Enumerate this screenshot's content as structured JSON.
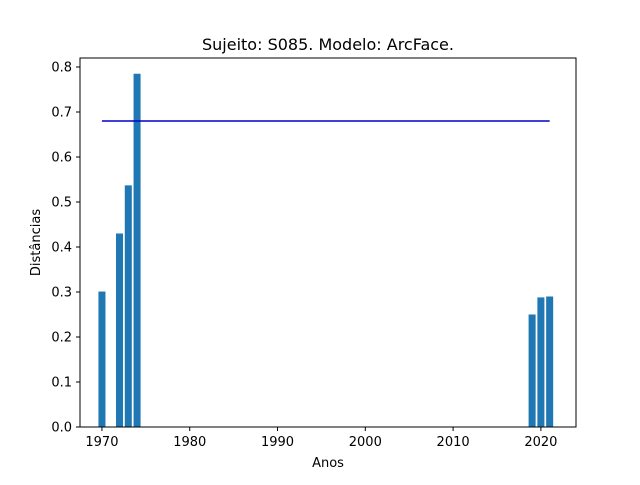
{
  "chart_data": {
    "type": "bar",
    "title": "Sujeito: S085. Modelo: ArcFace.",
    "xlabel": "Anos",
    "ylabel": "Distâncias",
    "xlim": [
      1967.5,
      2024.0
    ],
    "ylim": [
      0,
      0.82
    ],
    "xticks": [
      1970,
      1980,
      1990,
      2000,
      2010,
      2020
    ],
    "yticks": [
      0.0,
      0.1,
      0.2,
      0.3,
      0.4,
      0.5,
      0.6,
      0.7,
      0.8
    ],
    "ytick_labels": [
      "0.0",
      "0.1",
      "0.2",
      "0.3",
      "0.4",
      "0.5",
      "0.6",
      "0.7",
      "0.8"
    ],
    "grid": false,
    "bar_color": "#1f77b4",
    "bars": [
      {
        "x": 1970,
        "value": 0.301
      },
      {
        "x": 1972,
        "value": 0.43
      },
      {
        "x": 1973,
        "value": 0.537
      },
      {
        "x": 1974,
        "value": 0.785
      },
      {
        "x": 2019,
        "value": 0.25
      },
      {
        "x": 2020,
        "value": 0.288
      },
      {
        "x": 2021,
        "value": 0.29
      }
    ],
    "threshold": {
      "value": 0.68,
      "x_start": 1970,
      "x_end": 2021,
      "color": "#0000cc"
    }
  }
}
